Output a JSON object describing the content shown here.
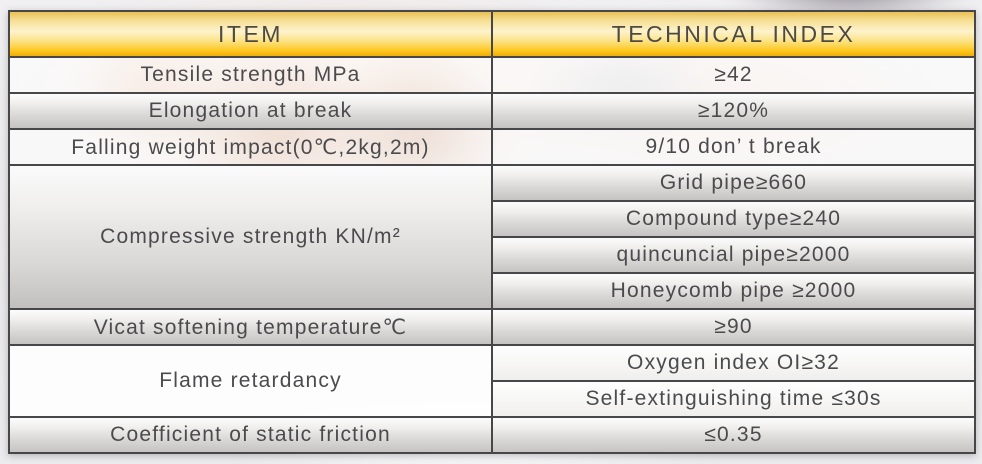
{
  "table": {
    "col1_header": "ITEM",
    "col2_header": "TECHNICAL INDEX",
    "rows": [
      {
        "item": "Tensile strength MPa",
        "index": "≥42"
      },
      {
        "item": "Elongation at break",
        "index": "≥120%"
      },
      {
        "item": "Falling weight impact(0℃,2kg,2m)",
        "index": "9/10 don’ t break"
      },
      {
        "item": "Compressive strength KN/m²",
        "index": "Grid pipe≥660"
      },
      {
        "index": "Compound type≥240"
      },
      {
        "index": "quincuncial pipe≥2000"
      },
      {
        "index": "Honeycomb pipe ≥2000"
      },
      {
        "item": "Vicat softening temperature℃",
        "index": "≥90"
      },
      {
        "item": "Flame retardancy",
        "index": "Oxygen index OI≥32"
      },
      {
        "index": "Self-extinguishing time ≤30s"
      },
      {
        "item": "Coefficient of static friction",
        "index": "≤0.35"
      }
    ],
    "colors": {
      "header_gold": "#fdc71e",
      "border": "#47474a",
      "text": "#4b4b4e"
    }
  }
}
